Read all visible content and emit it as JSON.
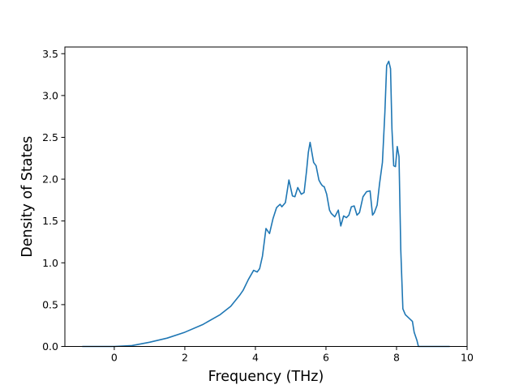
{
  "chart_data": {
    "type": "line",
    "title": "",
    "xlabel": "Frequency (THz)",
    "ylabel": "Density of States",
    "xlim": [
      -1.4,
      10.0
    ],
    "ylim": [
      0.0,
      3.58
    ],
    "xticks": [
      0,
      2,
      4,
      6,
      8,
      10
    ],
    "yticks": [
      0.0,
      0.5,
      1.0,
      1.5,
      2.0,
      2.5,
      3.0,
      3.5
    ],
    "xtick_labels": [
      "0",
      "2",
      "4",
      "6",
      "8",
      "10"
    ],
    "ytick_labels": [
      "0.0",
      "0.5",
      "1.0",
      "1.5",
      "2.0",
      "2.5",
      "3.0",
      "3.5"
    ],
    "grid": false,
    "legend": false,
    "color": "#1f77b4",
    "series": [
      {
        "x": [
          -0.9,
          0.0,
          0.5,
          1.0,
          1.5,
          2.0,
          2.5,
          3.0,
          3.3,
          3.55,
          3.65,
          3.8,
          3.95,
          4.05,
          4.12,
          4.2,
          4.3,
          4.4,
          4.5,
          4.6,
          4.7,
          4.75,
          4.85,
          4.95,
          5.05,
          5.12,
          5.2,
          5.3,
          5.38,
          5.45,
          5.5,
          5.55,
          5.65,
          5.72,
          5.8,
          5.85,
          5.9,
          5.95,
          6.02,
          6.1,
          6.15,
          6.25,
          6.35,
          6.42,
          6.5,
          6.58,
          6.65,
          6.72,
          6.8,
          6.88,
          6.95,
          7.05,
          7.15,
          7.25,
          7.32,
          7.37,
          7.45,
          7.52,
          7.6,
          7.67,
          7.72,
          7.78,
          7.83,
          7.87,
          7.92,
          7.97,
          8.02,
          8.07,
          8.12,
          8.18,
          8.25,
          8.35,
          8.45,
          8.5,
          8.58,
          8.62,
          8.7,
          9.0,
          9.5
        ],
        "y": [
          0.0,
          0.0,
          0.01,
          0.05,
          0.1,
          0.17,
          0.26,
          0.38,
          0.48,
          0.61,
          0.67,
          0.8,
          0.91,
          0.89,
          0.93,
          1.08,
          1.41,
          1.35,
          1.53,
          1.66,
          1.7,
          1.67,
          1.72,
          1.99,
          1.8,
          1.79,
          1.9,
          1.82,
          1.84,
          2.1,
          2.32,
          2.44,
          2.2,
          2.16,
          1.99,
          1.95,
          1.92,
          1.91,
          1.82,
          1.63,
          1.59,
          1.55,
          1.63,
          1.44,
          1.56,
          1.54,
          1.57,
          1.67,
          1.68,
          1.57,
          1.6,
          1.79,
          1.85,
          1.86,
          1.57,
          1.6,
          1.69,
          1.95,
          2.2,
          2.8,
          3.36,
          3.41,
          3.32,
          2.6,
          2.16,
          2.15,
          2.39,
          2.27,
          1.16,
          0.45,
          0.38,
          0.34,
          0.3,
          0.17,
          0.07,
          0.0,
          0.0,
          0.0,
          0.0
        ]
      }
    ]
  }
}
